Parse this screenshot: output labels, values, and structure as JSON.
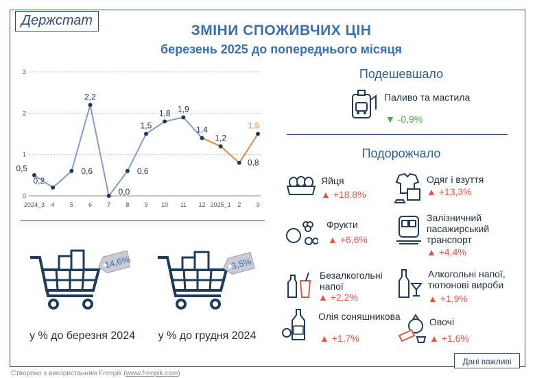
{
  "header": {
    "logo": "Держстат",
    "title": "ЗМІНИ СПОЖИВЧИХ ЦІН",
    "subtitle": "березень 2025 до попереднього місяця"
  },
  "chart_data": {
    "type": "line",
    "categories": [
      "2024_3",
      "4",
      "5",
      "6",
      "7",
      "8",
      "9",
      "10",
      "11",
      "12",
      "2025_1",
      "2",
      "3"
    ],
    "values": [
      0.5,
      0.2,
      0.6,
      2.2,
      0.0,
      0.6,
      1.5,
      1.8,
      1.9,
      1.4,
      1.2,
      0.8,
      1.5
    ],
    "value_labels": [
      "0,5",
      "0,2",
      "0,6",
      "2,2",
      "0,0",
      "0,6",
      "1,5",
      "1,8",
      "1,9",
      "1,4",
      "1,2",
      "0,8",
      "1,5"
    ],
    "y_ticks": [
      "0",
      "1",
      "2",
      "3"
    ],
    "ylim": [
      0,
      3
    ],
    "grid": true,
    "colors": {
      "main": "#7f9ccd",
      "highlight": "#d88a3c",
      "marker": "#1f3b5c",
      "grid": "#c8c8c8"
    },
    "highlight_from_index": 9
  },
  "cheaper": {
    "title": "Подешевшало",
    "items": [
      {
        "icon": "fuel-icon",
        "label": "Паливо та мастила",
        "value": "-0,9%",
        "arrow": "▼"
      }
    ]
  },
  "pricier": {
    "title": "Подорожчало",
    "items": [
      {
        "icon": "eggs-icon",
        "label": "Яйця",
        "value": "+18,8%",
        "arrow": "▲"
      },
      {
        "icon": "clothes-icon",
        "label": "Одяг і взуття",
        "value": "+13,3%",
        "arrow": "▲"
      },
      {
        "icon": "fruits-icon",
        "label": "Фрукти",
        "value": "+6,6%",
        "arrow": "▲"
      },
      {
        "icon": "train-icon",
        "label": "Залізничний пасажирський транспорт",
        "value": "+4,4%",
        "arrow": "▲"
      },
      {
        "icon": "soft-drinks-icon",
        "label": "Безалкогольні напої",
        "value": "+2,2%",
        "arrow": "▲"
      },
      {
        "icon": "alcohol-icon",
        "label": "Алкогольні напої, тютюнові вироби",
        "value": "+1,9%",
        "arrow": "▲"
      },
      {
        "icon": "oil-icon",
        "label": "Олія соняшникова",
        "value": "+1,7%",
        "arrow": "▲"
      },
      {
        "icon": "vegetables-icon",
        "label": "Овочі",
        "value": "+1,6%",
        "arrow": "▲"
      }
    ]
  },
  "carts": [
    {
      "tag": "14,6%",
      "caption": "у % до березня 2024"
    },
    {
      "tag": "3,5%",
      "caption": "у % до грудня 2024"
    }
  ],
  "footer": {
    "prefix": "Створено з використанням Freepik (",
    "link": "www.freepik.com",
    "suffix": ")"
  },
  "note": "Дані важливі"
}
